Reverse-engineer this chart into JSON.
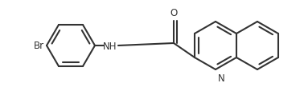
{
  "bg_color": "#ffffff",
  "line_color": "#333333",
  "line_width": 1.5,
  "font_size": 8.5,
  "figsize": [
    3.78,
    1.15
  ],
  "dpi": 100,
  "xlim": [
    0,
    378
  ],
  "ylim": [
    0,
    115
  ]
}
